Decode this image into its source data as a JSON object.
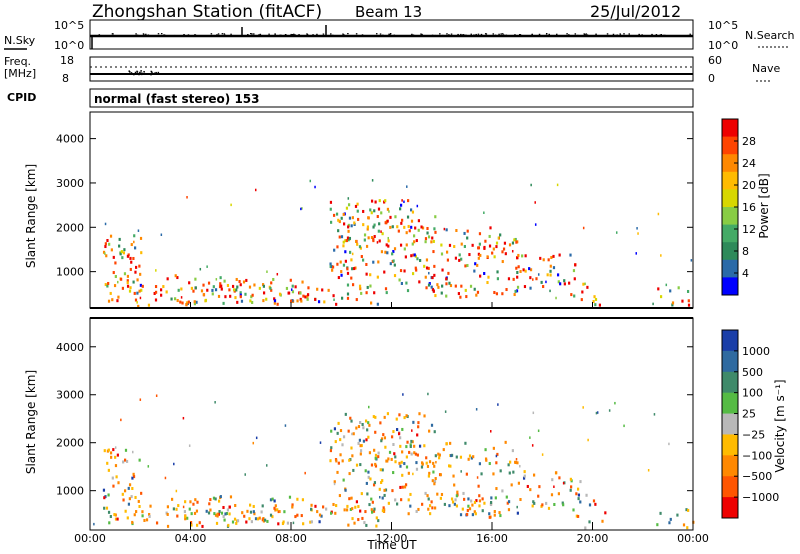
{
  "header": {
    "station": "Zhongshan Station (fitACF)",
    "beam": "Beam 13",
    "date": "25/Jul/2012"
  },
  "top_panels": {
    "nsky_label": "N.Sky",
    "nsky_ticks": [
      "10^5",
      "10^0"
    ],
    "nsearch_label": "N.Search",
    "nsearch_ticks": [
      "10^5",
      "10^0"
    ],
    "freq_label_1": "Freq.",
    "freq_label_2": "[MHz]",
    "freq_ticks": [
      "18",
      "8"
    ],
    "nave_label": "Nave",
    "nave_ticks": [
      "60",
      "0"
    ],
    "cpid_label": "CPID",
    "cpid_text": "normal (fast stereo) 153"
  },
  "panels": {
    "ylabel": "Slant Range [km]",
    "y_ticks": [
      "4000",
      "3000",
      "2000",
      "1000"
    ],
    "x_ticks": [
      "00:00",
      "04:00",
      "08:00",
      "12:00",
      "16:00",
      "20:00",
      "00:00"
    ],
    "xlabel": "Time UT"
  },
  "colorbars": {
    "power": {
      "label": "Power [dB]",
      "ticks": [
        "28",
        "24",
        "20",
        "16",
        "12",
        "8",
        "4"
      ],
      "colors": [
        "#ee0000",
        "#ff4400",
        "#ff8800",
        "#ffbb00",
        "#d7d700",
        "#88cc44",
        "#44aa66",
        "#2e8a5a",
        "#2a6aa8",
        "#0000ff"
      ]
    },
    "velocity": {
      "label": "Velocity [m s⁻¹]",
      "ticks": [
        "1000",
        "500",
        "100",
        "25",
        "−25",
        "−100",
        "−500",
        "−1000"
      ],
      "colors": [
        "#1a3ea8",
        "#2f6aa0",
        "#3f8a6a",
        "#55bb44",
        "#b8b8b8",
        "#ffbb00",
        "#ff8800",
        "#ff5500",
        "#ee0000"
      ]
    }
  },
  "chart_data": [
    {
      "type": "heatmap",
      "title": "Power",
      "xlabel": "Time UT",
      "ylabel": "Slant Range [km]",
      "x_range": [
        "00:00",
        "24:00"
      ],
      "ylim": [
        180,
        4600
      ],
      "x_ticks": [
        "00:00",
        "04:00",
        "08:00",
        "12:00",
        "16:00",
        "20:00",
        "00:00"
      ],
      "y_ticks": [
        1000,
        2000,
        3000,
        4000
      ],
      "colorbar": {
        "label": "Power [dB]",
        "ticks": [
          4,
          8,
          12,
          16,
          20,
          24,
          28
        ]
      },
      "grid": false
    },
    {
      "type": "heatmap",
      "title": "Velocity",
      "xlabel": "Time UT",
      "ylabel": "Slant Range [km]",
      "x_range": [
        "00:00",
        "24:00"
      ],
      "ylim": [
        180,
        4600
      ],
      "x_ticks": [
        "00:00",
        "04:00",
        "08:00",
        "12:00",
        "16:00",
        "20:00",
        "00:00"
      ],
      "y_ticks": [
        1000,
        2000,
        3000,
        4000
      ],
      "colorbar": {
        "label": "Velocity [m s⁻¹]",
        "ticks": [
          1000,
          500,
          100,
          25,
          -25,
          -100,
          -500,
          -1000
        ]
      },
      "grid": false
    }
  ]
}
